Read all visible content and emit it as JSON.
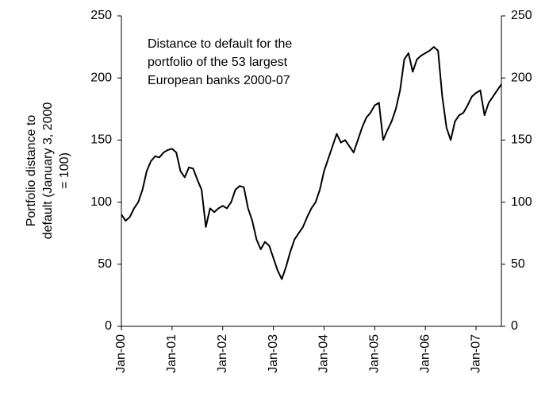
{
  "chart_data": {
    "type": "line",
    "annotation": [
      "Distance to default for the",
      "portfolio of the 53 largest",
      "European banks 2000-07"
    ],
    "y_label": [
      "Portfolio distance to",
      "default (January 3, 2000",
      "= 100)"
    ],
    "x": [
      "2000-01",
      "2000-02",
      "2000-03",
      "2000-04",
      "2000-05",
      "2000-06",
      "2000-07",
      "2000-08",
      "2000-09",
      "2000-10",
      "2000-11",
      "2000-12",
      "2001-01",
      "2001-02",
      "2001-03",
      "2001-04",
      "2001-05",
      "2001-06",
      "2001-07",
      "2001-08",
      "2001-09",
      "2001-10",
      "2001-11",
      "2001-12",
      "2002-01",
      "2002-02",
      "2002-03",
      "2002-04",
      "2002-05",
      "2002-06",
      "2002-07",
      "2002-08",
      "2002-09",
      "2002-10",
      "2002-11",
      "2002-12",
      "2003-01",
      "2003-02",
      "2003-03",
      "2003-04",
      "2003-05",
      "2003-06",
      "2003-07",
      "2003-08",
      "2003-09",
      "2003-10",
      "2003-11",
      "2003-12",
      "2004-01",
      "2004-02",
      "2004-03",
      "2004-04",
      "2004-05",
      "2004-06",
      "2004-07",
      "2004-08",
      "2004-09",
      "2004-10",
      "2004-11",
      "2004-12",
      "2005-01",
      "2005-02",
      "2005-03",
      "2005-04",
      "2005-05",
      "2005-06",
      "2005-07",
      "2005-08",
      "2005-09",
      "2005-10",
      "2005-11",
      "2005-12",
      "2006-01",
      "2006-02",
      "2006-03",
      "2006-04",
      "2006-05",
      "2006-06",
      "2006-07",
      "2006-08",
      "2006-09",
      "2006-10",
      "2006-11",
      "2006-12",
      "2007-01",
      "2007-02",
      "2007-03",
      "2007-04",
      "2007-05",
      "2007-06",
      "2007-07"
    ],
    "series": [
      {
        "color": "#000000",
        "values": [
          90,
          85,
          88,
          95,
          100,
          110,
          125,
          133,
          137,
          136,
          140,
          142,
          143,
          140,
          125,
          120,
          128,
          127,
          118,
          110,
          80,
          95,
          92,
          95,
          97,
          95,
          100,
          110,
          113,
          112,
          95,
          85,
          70,
          62,
          68,
          65,
          55,
          45,
          38,
          48,
          60,
          70,
          75,
          80,
          88,
          95,
          100,
          110,
          125,
          135,
          145,
          155,
          148,
          150,
          145,
          140,
          150,
          160,
          168,
          172,
          178,
          180,
          150,
          158,
          165,
          175,
          190,
          215,
          220,
          205,
          215,
          218,
          220,
          222,
          225,
          222,
          185,
          160,
          150,
          165,
          170,
          172,
          178,
          185,
          188,
          190,
          170,
          180,
          185,
          190,
          195
        ]
      }
    ],
    "xlim": [
      "2000-01",
      "2007-07"
    ],
    "xticks": [
      {
        "value": "2000-01",
        "label": "Jan-00"
      },
      {
        "value": "2001-01",
        "label": "Jan-01"
      },
      {
        "value": "2002-01",
        "label": "Jan-02"
      },
      {
        "value": "2003-01",
        "label": "Jan-03"
      },
      {
        "value": "2004-01",
        "label": "Jan-04"
      },
      {
        "value": "2005-01",
        "label": "Jan-05"
      },
      {
        "value": "2006-01",
        "label": "Jan-06"
      },
      {
        "value": "2007-01",
        "label": "Jan-07"
      }
    ],
    "ylim": [
      0,
      250
    ],
    "yticks": [
      0,
      50,
      100,
      150,
      200,
      250
    ],
    "y2lim": [
      0,
      250
    ],
    "y2ticks": [
      0,
      50,
      100,
      150,
      200,
      250
    ]
  }
}
